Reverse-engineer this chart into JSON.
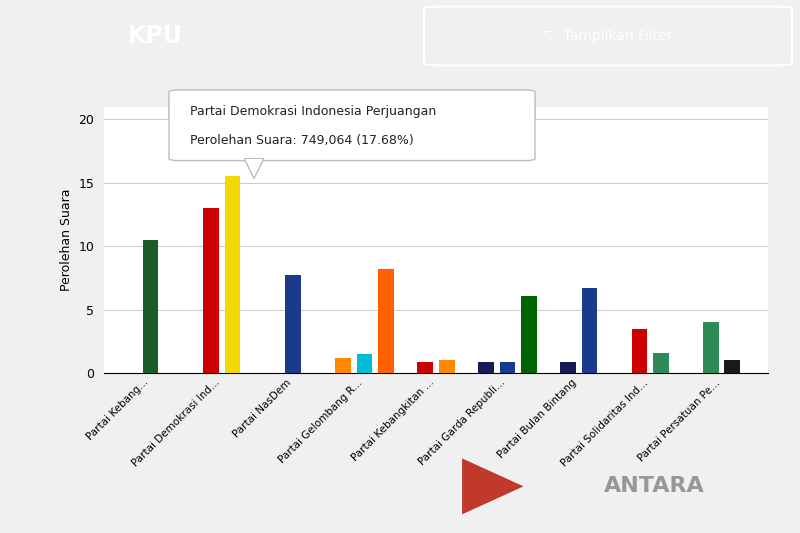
{
  "categories": [
    "Partai Kebang...",
    "Partai Demokrasi Ind...",
    "Partai NasDem",
    "Partai Gelombang R...",
    "Partai Kebangkitan ...",
    "Partai Garda Republi...",
    "Partai Bulan Bintang",
    "Partai Solidaritas Ind...",
    "Partai Persatuan Pe..."
  ],
  "bar_groups": [
    {
      "values": [
        10.5
      ],
      "colors": [
        "#1a5c2a"
      ]
    },
    {
      "values": [
        13.0,
        15.5
      ],
      "colors": [
        "#cc0000",
        "#f0d800"
      ]
    },
    {
      "values": [
        7.7
      ],
      "colors": [
        "#1a3a8c"
      ]
    },
    {
      "values": [
        1.2,
        1.5,
        8.2
      ],
      "colors": [
        "#ff8800",
        "#00bcd4",
        "#ff6000"
      ]
    },
    {
      "values": [
        0.9,
        1.0
      ],
      "colors": [
        "#cc0000",
        "#ff8800"
      ]
    },
    {
      "values": [
        0.9,
        0.9,
        6.1
      ],
      "colors": [
        "#1a1a55",
        "#1a3a8c",
        "#006400"
      ]
    },
    {
      "values": [
        0.9,
        6.7
      ],
      "colors": [
        "#1a1a55",
        "#1a3a8c"
      ]
    },
    {
      "values": [
        3.5,
        1.6
      ],
      "colors": [
        "#cc0000",
        "#2e8b57"
      ]
    },
    {
      "values": [
        4.0,
        1.0
      ],
      "colors": [
        "#2e8b57",
        "#1a1a1a"
      ]
    }
  ],
  "ylabel": "Perolehan Suara",
  "ylim": [
    0,
    21
  ],
  "yticks": [
    0,
    5,
    10,
    15,
    20
  ],
  "header_color": "#7a1020",
  "header_title": "KPU",
  "filter_label": "Tampilkan Filter",
  "tooltip_line1": "Partai Demokrasi Indonesia Perjuangan",
  "tooltip_line2": "Perolehan Suara: 749,064 (17.68%)",
  "bg_color": "#f0f0f0",
  "chart_bg": "#ffffff",
  "antara_bg": "#d8d8d8"
}
